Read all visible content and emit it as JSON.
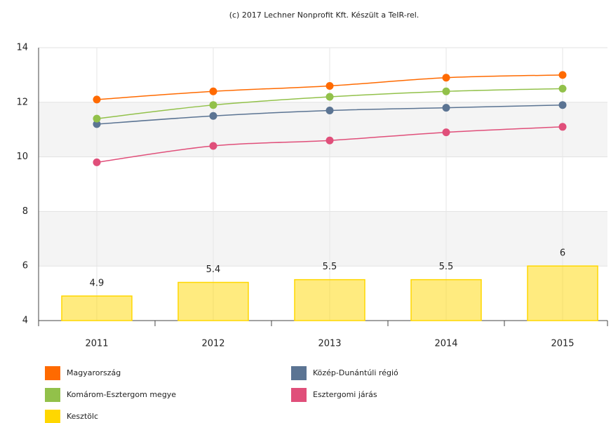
{
  "chart_data": {
    "type": "combo",
    "title": "(c) 2017 Lechner Nonprofit Kft. Készült a TeIR-rel.",
    "categories": [
      "2011",
      "2012",
      "2013",
      "2014",
      "2015"
    ],
    "ylim": [
      4,
      14
    ],
    "yticks": [
      4,
      6,
      8,
      10,
      12,
      14
    ],
    "grid": true,
    "series": [
      {
        "name": "Magyarország",
        "type": "line",
        "color": "#ff6a00",
        "values": [
          12.1,
          12.4,
          12.6,
          12.9,
          13.0
        ]
      },
      {
        "name": "Közép-Dunántúli régió",
        "type": "line",
        "color": "#5b7493",
        "values": [
          11.2,
          11.5,
          11.7,
          11.8,
          11.9
        ]
      },
      {
        "name": "Komárom-Esztergom megye",
        "type": "line",
        "color": "#92c14a",
        "values": [
          11.4,
          11.9,
          12.2,
          12.4,
          12.5
        ]
      },
      {
        "name": "Esztergomi járás",
        "type": "line",
        "color": "#e04f7a",
        "values": [
          9.8,
          10.4,
          10.6,
          10.9,
          11.1
        ]
      },
      {
        "name": "Kesztölc",
        "type": "bar",
        "color": "#ffd700",
        "values": [
          4.9,
          5.4,
          5.5,
          5.5,
          6
        ]
      }
    ]
  }
}
